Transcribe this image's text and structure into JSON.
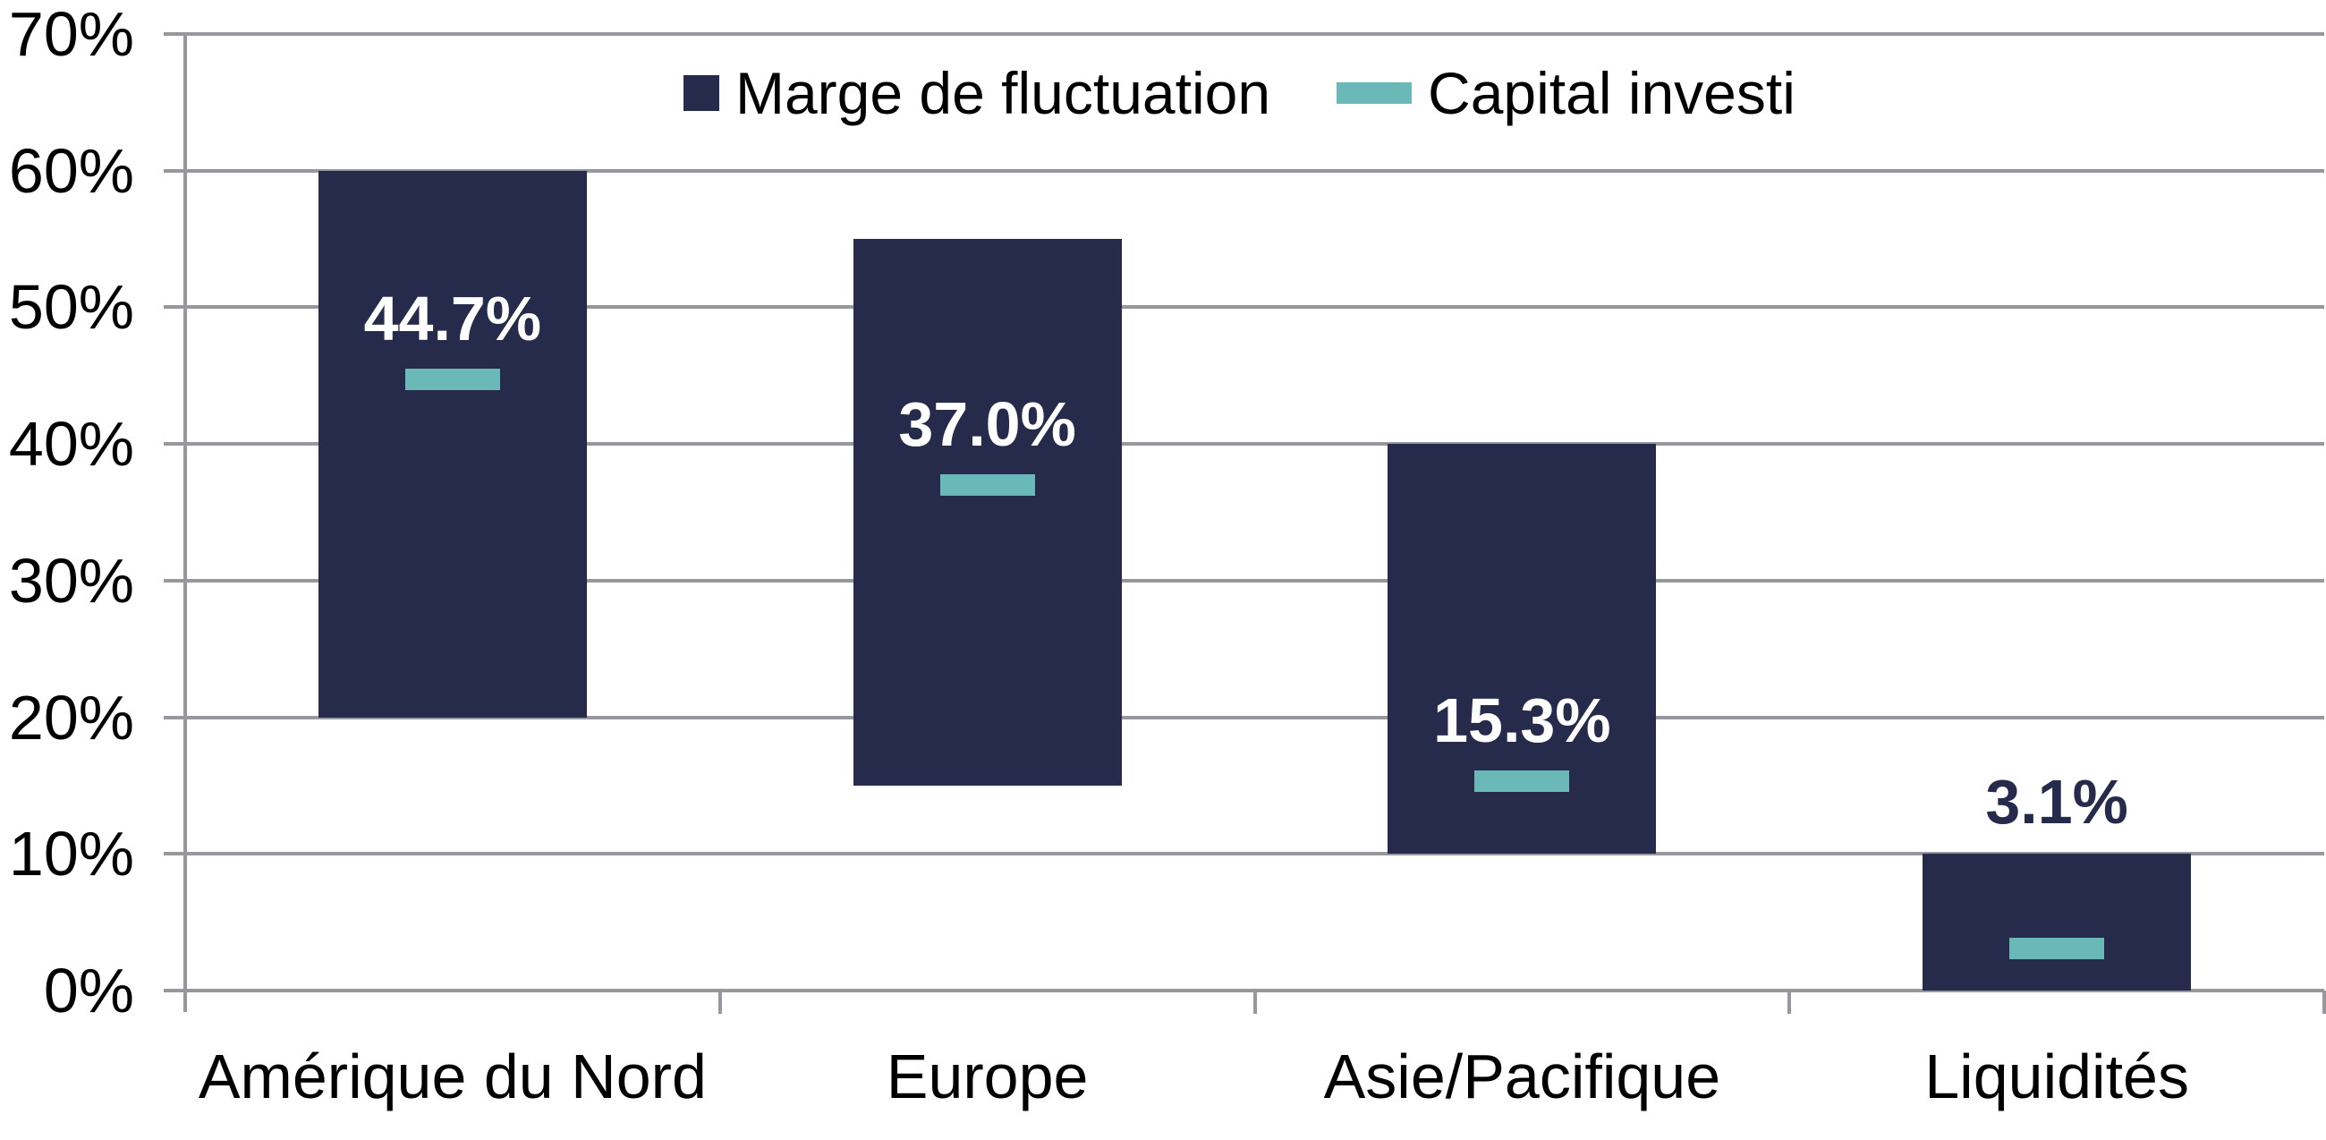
{
  "chart_data": {
    "type": "bar",
    "subtype": "floating-range-columns",
    "title": "",
    "categories": [
      "Amérique du Nord",
      "Europe",
      "Asie/Pacifique",
      "Liquidités"
    ],
    "series": [
      {
        "name": "Marge de fluctuation",
        "style": "range-bar",
        "color": "#262B4B",
        "ranges_pct": [
          [
            20,
            60
          ],
          [
            15,
            55
          ],
          [
            10,
            40
          ],
          [
            0,
            10
          ]
        ]
      },
      {
        "name": "Capital investi",
        "style": "dash-marker",
        "color": "#6BB8B9",
        "values_pct": [
          44.7,
          37.0,
          15.3,
          3.1
        ]
      }
    ],
    "data_labels": [
      "44.7%",
      "37.0%",
      "15.3%",
      "3.1%"
    ],
    "label_placement": [
      "inside",
      "inside",
      "inside",
      "above"
    ],
    "xlabel": "",
    "ylabel": "",
    "ylim": [
      0,
      70
    ],
    "yticks": [
      "0%",
      "10%",
      "20%",
      "30%",
      "40%",
      "50%",
      "60%",
      "70%"
    ],
    "grid": "horizontal",
    "legend_position": "top-center",
    "colors": {
      "bar": "#262B4B",
      "marker": "#6BB8B9",
      "gridline": "#97979D",
      "axis": "#97979D",
      "tick_text": "#000000",
      "category_text": "#000000",
      "label_inside": "#FFFFFF",
      "label_outside": "#262B4B",
      "background": "#FFFFFF"
    }
  },
  "legend": {
    "items": [
      {
        "label": "Marge de fluctuation",
        "swatch": "square",
        "color": "#262B4B"
      },
      {
        "label": "Capital investi",
        "swatch": "dash",
        "color": "#6BB8B9"
      }
    ]
  }
}
